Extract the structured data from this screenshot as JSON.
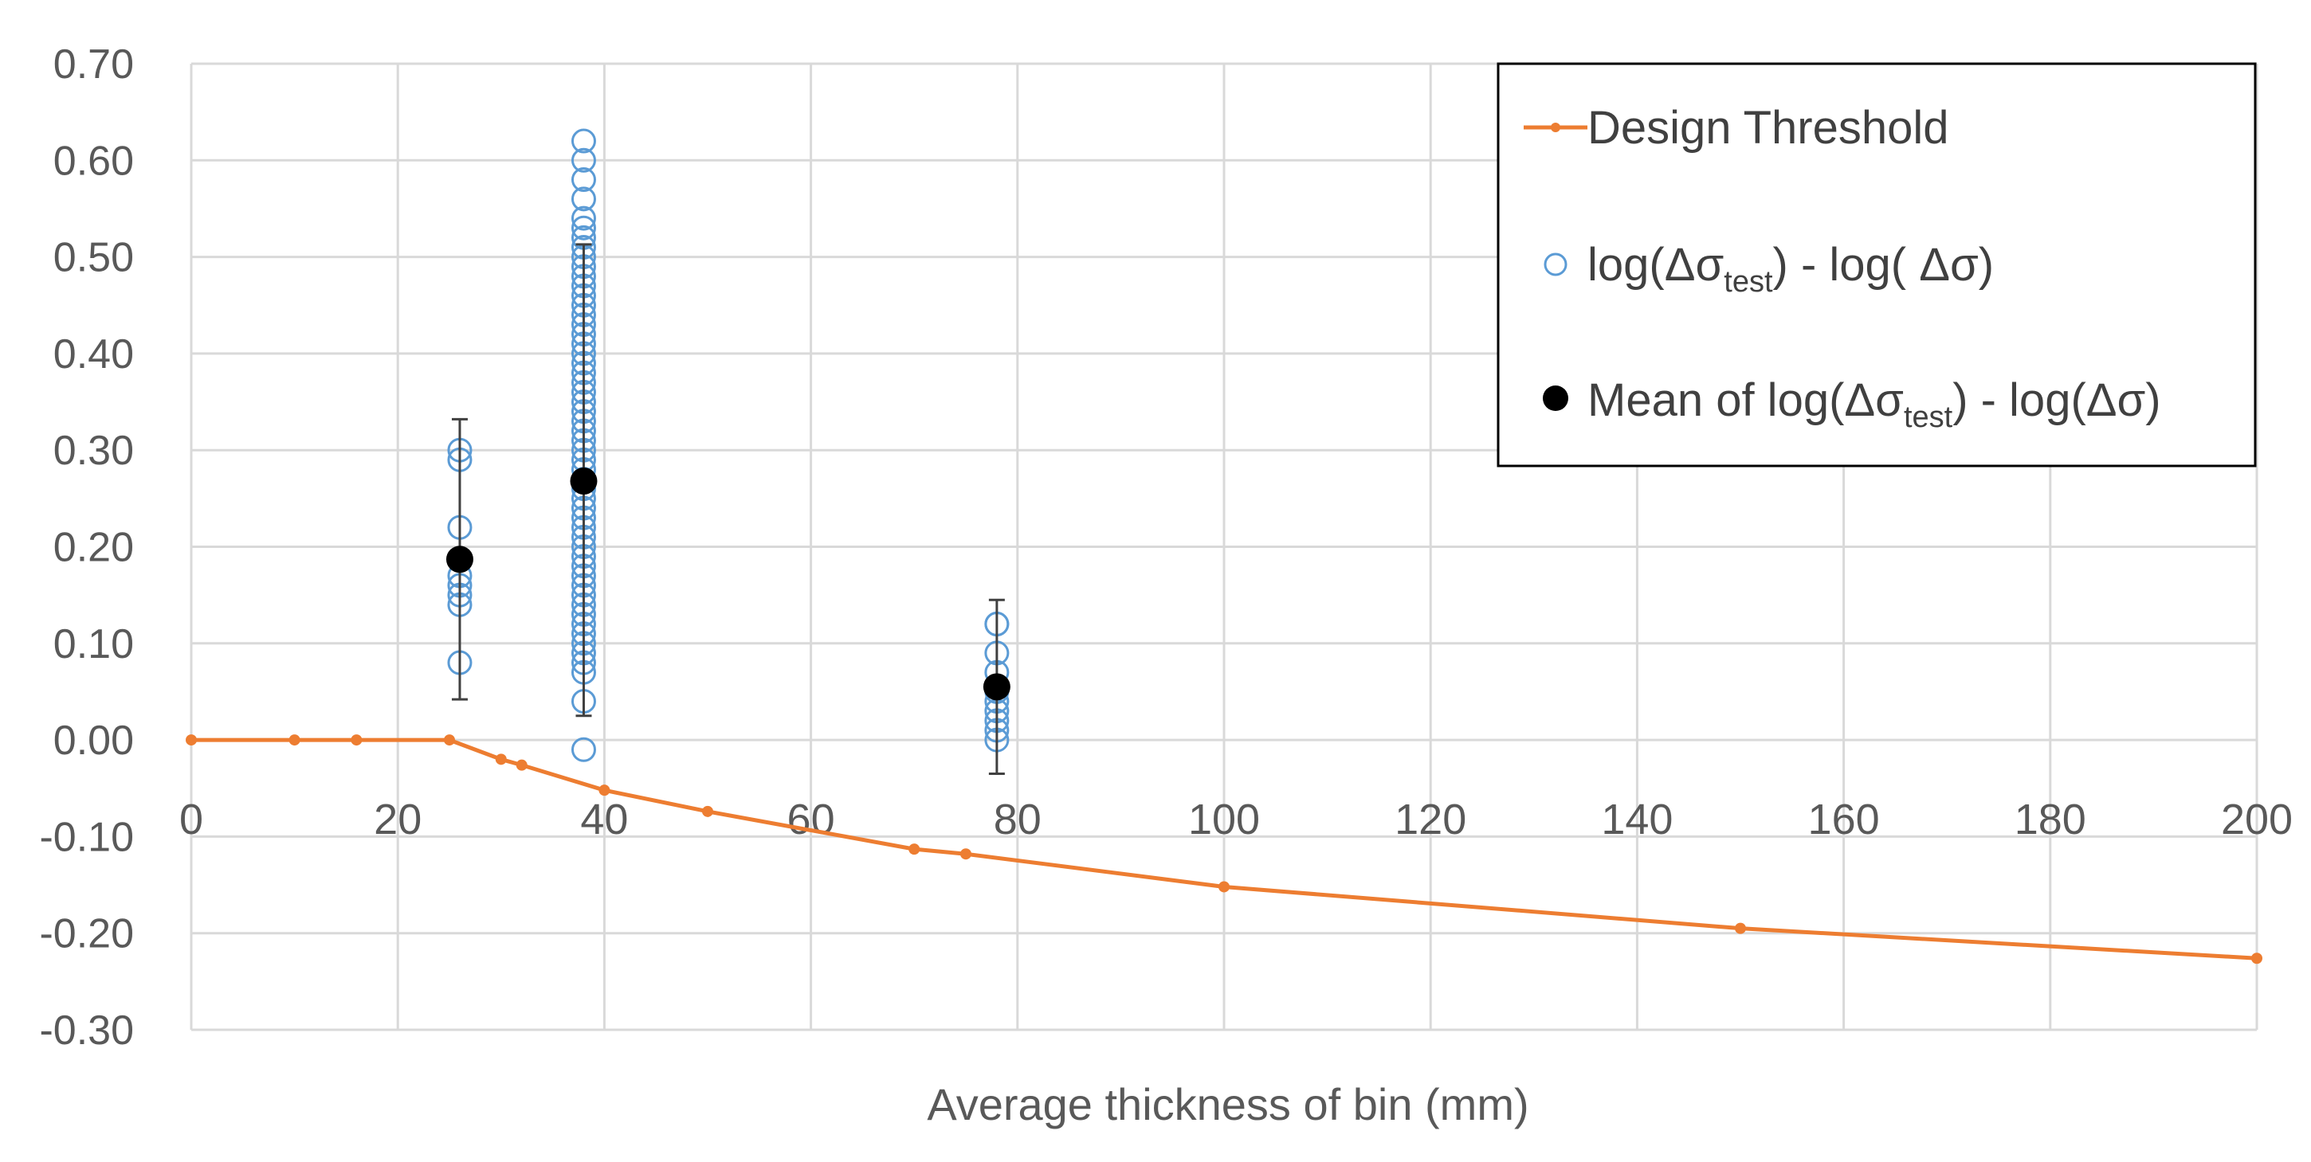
{
  "chart_data": {
    "type": "scatter",
    "title": "",
    "xlabel": "Average thickness of bin (mm)",
    "ylabel": "",
    "xlim": [
      0,
      200
    ],
    "ylim": [
      -0.3,
      0.7
    ],
    "x_ticks": [
      "0",
      "20",
      "40",
      "60",
      "80",
      "100",
      "120",
      "140",
      "160",
      "180",
      "200"
    ],
    "y_ticks": [
      "0.70",
      "0.60",
      "0.50",
      "0.40",
      "0.30",
      "0.20",
      "0.10",
      "0.00",
      "-0.10",
      "-0.20",
      "-0.30"
    ],
    "grid": true,
    "legend_position": "top-right",
    "legend": {
      "design_threshold": "Design Threshold",
      "observed_prefix": "log(Δσ",
      "observed_sub": "test",
      "observed_suffix": ") - log( Δσ)",
      "mean_prefix": "Mean of log(Δσ",
      "mean_sub": "test",
      "mean_suffix": ") - log(Δσ)"
    },
    "colors": {
      "design_threshold": "#ED7D31",
      "observed": "#5B9BD5",
      "mean": "#000000",
      "grid": "#D9D9D9",
      "text": "#595959"
    },
    "series": [
      {
        "name": "Design Threshold",
        "kind": "line",
        "x": [
          0,
          10,
          16,
          25,
          30,
          32,
          40,
          50,
          70,
          75,
          100,
          150,
          200
        ],
        "y": [
          0.0,
          0.0,
          0.0,
          0.0,
          -0.02,
          -0.026,
          -0.052,
          -0.074,
          -0.113,
          -0.118,
          -0.152,
          -0.195,
          -0.226
        ]
      },
      {
        "name": "log(Δσtest) - log( Δσ)",
        "kind": "scatter",
        "groups": [
          {
            "x": 26,
            "y": [
              0.3,
              0.29,
              0.22,
              0.17,
              0.16,
              0.15,
              0.14,
              0.08
            ]
          },
          {
            "x": 38,
            "y": [
              0.62,
              0.6,
              0.58,
              0.56,
              0.54,
              0.53,
              0.52,
              0.51,
              0.5,
              0.49,
              0.48,
              0.47,
              0.46,
              0.45,
              0.44,
              0.43,
              0.42,
              0.41,
              0.4,
              0.39,
              0.38,
              0.37,
              0.36,
              0.35,
              0.34,
              0.33,
              0.32,
              0.31,
              0.3,
              0.29,
              0.28,
              0.27,
              0.26,
              0.25,
              0.24,
              0.23,
              0.22,
              0.21,
              0.2,
              0.19,
              0.18,
              0.17,
              0.16,
              0.15,
              0.14,
              0.13,
              0.12,
              0.11,
              0.1,
              0.09,
              0.08,
              0.07,
              0.04,
              -0.01
            ]
          },
          {
            "x": 78,
            "y": [
              0.12,
              0.12,
              0.09,
              0.07,
              0.05,
              0.04,
              0.03,
              0.02,
              0.01,
              0.0
            ]
          }
        ]
      },
      {
        "name": "Mean of log(Δσtest) - log(Δσ)",
        "kind": "mean_with_error",
        "points": [
          {
            "x": 26,
            "y": 0.187,
            "err_low": 0.042,
            "err_high": 0.332
          },
          {
            "x": 38,
            "y": 0.268,
            "err_low": 0.025,
            "err_high": 0.513
          },
          {
            "x": 78,
            "y": 0.055,
            "err_low": -0.035,
            "err_high": 0.145
          }
        ]
      }
    ]
  }
}
